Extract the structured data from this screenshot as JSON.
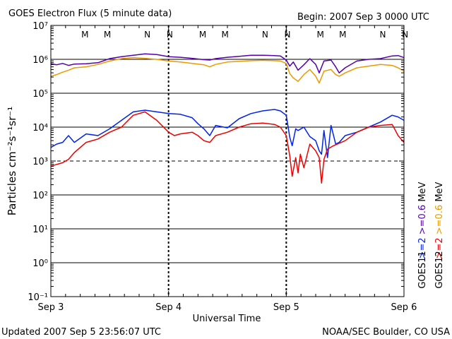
{
  "chart_data": {
    "type": "line",
    "title": "GOES Electron Flux (5 minute data)",
    "begin_label": "Begin: 2007 Sep 3 0000 UTC",
    "xlabel": "Universal Time",
    "ylabel": "Particles cm⁻²s⁻¹sr⁻¹",
    "yscale": "log",
    "ylim_exponent": [
      -1,
      7
    ],
    "y_tick_labels": [
      "10⁷",
      "10⁶",
      "10⁵",
      "10⁴",
      "10³",
      "10²",
      "10¹",
      "10⁰",
      "10⁻¹"
    ],
    "x_range_days": [
      0,
      3
    ],
    "x_tick_labels": [
      "Sep 3",
      "Sep 4",
      "Sep 5",
      "Sep 6"
    ],
    "threshold_lines": [
      {
        "value_exponent": 6,
        "style": "solid"
      },
      {
        "value_exponent": 5,
        "style": "solid"
      },
      {
        "value_exponent": 4,
        "style": "solid"
      },
      {
        "value_exponent": 3,
        "style": "dashed"
      },
      {
        "value_exponent": 2,
        "style": "solid"
      },
      {
        "value_exponent": 1,
        "style": "solid"
      },
      {
        "value_exponent": 0,
        "style": "solid"
      }
    ],
    "markers": [
      {
        "label": "M",
        "day": 0.29,
        "color": "#dd0000"
      },
      {
        "label": "M",
        "day": 0.48,
        "color": "#0000dd"
      },
      {
        "label": "N",
        "day": 0.82,
        "color": "#dd0000"
      },
      {
        "label": "N",
        "day": 1.01,
        "color": "#0000dd"
      },
      {
        "label": "M",
        "day": 1.29,
        "color": "#dd0000"
      },
      {
        "label": "M",
        "day": 1.48,
        "color": "#0000dd"
      },
      {
        "label": "N",
        "day": 1.82,
        "color": "#dd0000"
      },
      {
        "label": "N",
        "day": 2.01,
        "color": "#0000dd"
      },
      {
        "label": "M",
        "day": 2.29,
        "color": "#dd0000"
      },
      {
        "label": "M",
        "day": 2.48,
        "color": "#0000dd"
      },
      {
        "label": "N",
        "day": 2.82,
        "color": "#dd0000"
      },
      {
        "label": "N",
        "day": 3.01,
        "color": "#0000dd"
      }
    ],
    "series": [
      {
        "name": "GOES11 >=0.6 MeV",
        "color": "#5500aa",
        "points_day_log": [
          [
            0,
            5.87
          ],
          [
            0.05,
            5.84
          ],
          [
            0.1,
            5.88
          ],
          [
            0.15,
            5.82
          ],
          [
            0.2,
            5.86
          ],
          [
            0.3,
            5.87
          ],
          [
            0.4,
            5.9
          ],
          [
            0.5,
            6.02
          ],
          [
            0.6,
            6.08
          ],
          [
            0.7,
            6.12
          ],
          [
            0.8,
            6.16
          ],
          [
            0.9,
            6.14
          ],
          [
            1.0,
            6.08
          ],
          [
            1.1,
            6.06
          ],
          [
            1.2,
            6.03
          ],
          [
            1.3,
            5.99
          ],
          [
            1.35,
            5.98
          ],
          [
            1.4,
            6.02
          ],
          [
            1.5,
            6.06
          ],
          [
            1.6,
            6.09
          ],
          [
            1.7,
            6.12
          ],
          [
            1.8,
            6.12
          ],
          [
            1.9,
            6.11
          ],
          [
            1.95,
            6.1
          ],
          [
            2.0,
            5.98
          ],
          [
            2.03,
            5.8
          ],
          [
            2.06,
            5.92
          ],
          [
            2.1,
            5.68
          ],
          [
            2.15,
            5.84
          ],
          [
            2.2,
            6.02
          ],
          [
            2.25,
            5.85
          ],
          [
            2.28,
            5.6
          ],
          [
            2.32,
            5.95
          ],
          [
            2.38,
            5.98
          ],
          [
            2.42,
            5.78
          ],
          [
            2.45,
            5.6
          ],
          [
            2.5,
            5.75
          ],
          [
            2.6,
            5.95
          ],
          [
            2.7,
            6.0
          ],
          [
            2.8,
            6.02
          ],
          [
            2.9,
            6.1
          ],
          [
            2.95,
            6.11
          ],
          [
            3.0,
            6.05
          ]
        ]
      },
      {
        "name": "GOES12 >=0.6 MeV",
        "color": "#ee9900",
        "points_day_log": [
          [
            0,
            5.5
          ],
          [
            0.05,
            5.55
          ],
          [
            0.1,
            5.62
          ],
          [
            0.15,
            5.68
          ],
          [
            0.2,
            5.75
          ],
          [
            0.3,
            5.78
          ],
          [
            0.4,
            5.85
          ],
          [
            0.5,
            5.95
          ],
          [
            0.6,
            6.02
          ],
          [
            0.7,
            6.05
          ],
          [
            0.8,
            6.03
          ],
          [
            0.9,
            6.0
          ],
          [
            1.0,
            5.95
          ],
          [
            1.1,
            5.92
          ],
          [
            1.2,
            5.88
          ],
          [
            1.3,
            5.84
          ],
          [
            1.35,
            5.78
          ],
          [
            1.4,
            5.85
          ],
          [
            1.5,
            5.92
          ],
          [
            1.6,
            5.94
          ],
          [
            1.7,
            5.96
          ],
          [
            1.8,
            5.97
          ],
          [
            1.9,
            5.96
          ],
          [
            1.95,
            5.95
          ],
          [
            2.0,
            5.88
          ],
          [
            2.03,
            5.58
          ],
          [
            2.06,
            5.45
          ],
          [
            2.1,
            5.35
          ],
          [
            2.15,
            5.55
          ],
          [
            2.2,
            5.7
          ],
          [
            2.25,
            5.5
          ],
          [
            2.28,
            5.3
          ],
          [
            2.32,
            5.65
          ],
          [
            2.38,
            5.7
          ],
          [
            2.42,
            5.55
          ],
          [
            2.45,
            5.5
          ],
          [
            2.5,
            5.6
          ],
          [
            2.6,
            5.75
          ],
          [
            2.7,
            5.8
          ],
          [
            2.8,
            5.85
          ],
          [
            2.9,
            5.82
          ],
          [
            2.95,
            5.75
          ],
          [
            3.0,
            5.65
          ]
        ]
      },
      {
        "name": "GOES11 >=2 MeV",
        "color": "#0022ee",
        "points_day_log": [
          [
            0,
            3.4
          ],
          [
            0.05,
            3.5
          ],
          [
            0.1,
            3.55
          ],
          [
            0.15,
            3.75
          ],
          [
            0.2,
            3.55
          ],
          [
            0.3,
            3.8
          ],
          [
            0.4,
            3.75
          ],
          [
            0.5,
            3.95
          ],
          [
            0.6,
            4.2
          ],
          [
            0.7,
            4.45
          ],
          [
            0.8,
            4.5
          ],
          [
            0.9,
            4.45
          ],
          [
            1.0,
            4.4
          ],
          [
            1.1,
            4.38
          ],
          [
            1.2,
            4.28
          ],
          [
            1.25,
            4.1
          ],
          [
            1.3,
            3.95
          ],
          [
            1.35,
            3.75
          ],
          [
            1.4,
            4.05
          ],
          [
            1.5,
            3.98
          ],
          [
            1.6,
            4.25
          ],
          [
            1.7,
            4.4
          ],
          [
            1.8,
            4.48
          ],
          [
            1.9,
            4.52
          ],
          [
            1.95,
            4.48
          ],
          [
            2.0,
            4.35
          ],
          [
            2.03,
            3.7
          ],
          [
            2.05,
            3.45
          ],
          [
            2.08,
            3.95
          ],
          [
            2.1,
            3.9
          ],
          [
            2.15,
            4.0
          ],
          [
            2.2,
            3.72
          ],
          [
            2.25,
            3.6
          ],
          [
            2.28,
            3.3
          ],
          [
            2.3,
            3.2
          ],
          [
            2.32,
            3.9
          ],
          [
            2.35,
            3.1
          ],
          [
            2.38,
            4.05
          ],
          [
            2.42,
            3.5
          ],
          [
            2.45,
            3.55
          ],
          [
            2.5,
            3.75
          ],
          [
            2.6,
            3.85
          ],
          [
            2.7,
            4.0
          ],
          [
            2.8,
            4.15
          ],
          [
            2.9,
            4.35
          ],
          [
            2.95,
            4.3
          ],
          [
            3.0,
            4.2
          ]
        ]
      },
      {
        "name": "GOES12 >=2 MeV",
        "color": "#ee0000",
        "points_day_log": [
          [
            0,
            2.85
          ],
          [
            0.05,
            2.9
          ],
          [
            0.1,
            2.95
          ],
          [
            0.15,
            3.05
          ],
          [
            0.2,
            3.25
          ],
          [
            0.3,
            3.55
          ],
          [
            0.4,
            3.65
          ],
          [
            0.5,
            3.85
          ],
          [
            0.6,
            4.0
          ],
          [
            0.7,
            4.35
          ],
          [
            0.8,
            4.45
          ],
          [
            0.9,
            4.2
          ],
          [
            1.0,
            3.85
          ],
          [
            1.05,
            3.75
          ],
          [
            1.1,
            3.8
          ],
          [
            1.2,
            3.85
          ],
          [
            1.25,
            3.75
          ],
          [
            1.3,
            3.6
          ],
          [
            1.35,
            3.55
          ],
          [
            1.4,
            3.75
          ],
          [
            1.5,
            3.85
          ],
          [
            1.6,
            4.0
          ],
          [
            1.7,
            4.1
          ],
          [
            1.8,
            4.12
          ],
          [
            1.9,
            4.08
          ],
          [
            1.95,
            4.0
          ],
          [
            2.0,
            3.75
          ],
          [
            2.03,
            3.15
          ],
          [
            2.05,
            2.55
          ],
          [
            2.08,
            3.1
          ],
          [
            2.1,
            2.65
          ],
          [
            2.12,
            3.2
          ],
          [
            2.15,
            2.8
          ],
          [
            2.2,
            3.5
          ],
          [
            2.25,
            3.3
          ],
          [
            2.28,
            3.1
          ],
          [
            2.3,
            2.35
          ],
          [
            2.32,
            3.05
          ],
          [
            2.35,
            3.35
          ],
          [
            2.4,
            3.45
          ],
          [
            2.5,
            3.6
          ],
          [
            2.6,
            3.85
          ],
          [
            2.7,
            4.0
          ],
          [
            2.8,
            4.05
          ],
          [
            2.9,
            4.08
          ],
          [
            2.95,
            3.75
          ],
          [
            3.0,
            3.55
          ]
        ]
      }
    ],
    "legend": {
      "goes11_label": "GOES11",
      "goes12_label": "GOES12",
      "goes11_line": [
        {
          "text": ">=2",
          "color": "#0022ee"
        },
        {
          "text": ">=0.6",
          "color": "#5500aa"
        },
        {
          "text": "MeV",
          "color": "#000000"
        }
      ],
      "goes12_line": [
        {
          "text": ">=2",
          "color": "#ee0000"
        },
        {
          "text": ">=0.6",
          "color": "#ee9900"
        },
        {
          "text": "MeV",
          "color": "#000000"
        }
      ]
    },
    "footer_left": "Updated 2007 Sep  5 23:56:07 UTC",
    "footer_right": "NOAA/SEC Boulder, CO USA"
  }
}
